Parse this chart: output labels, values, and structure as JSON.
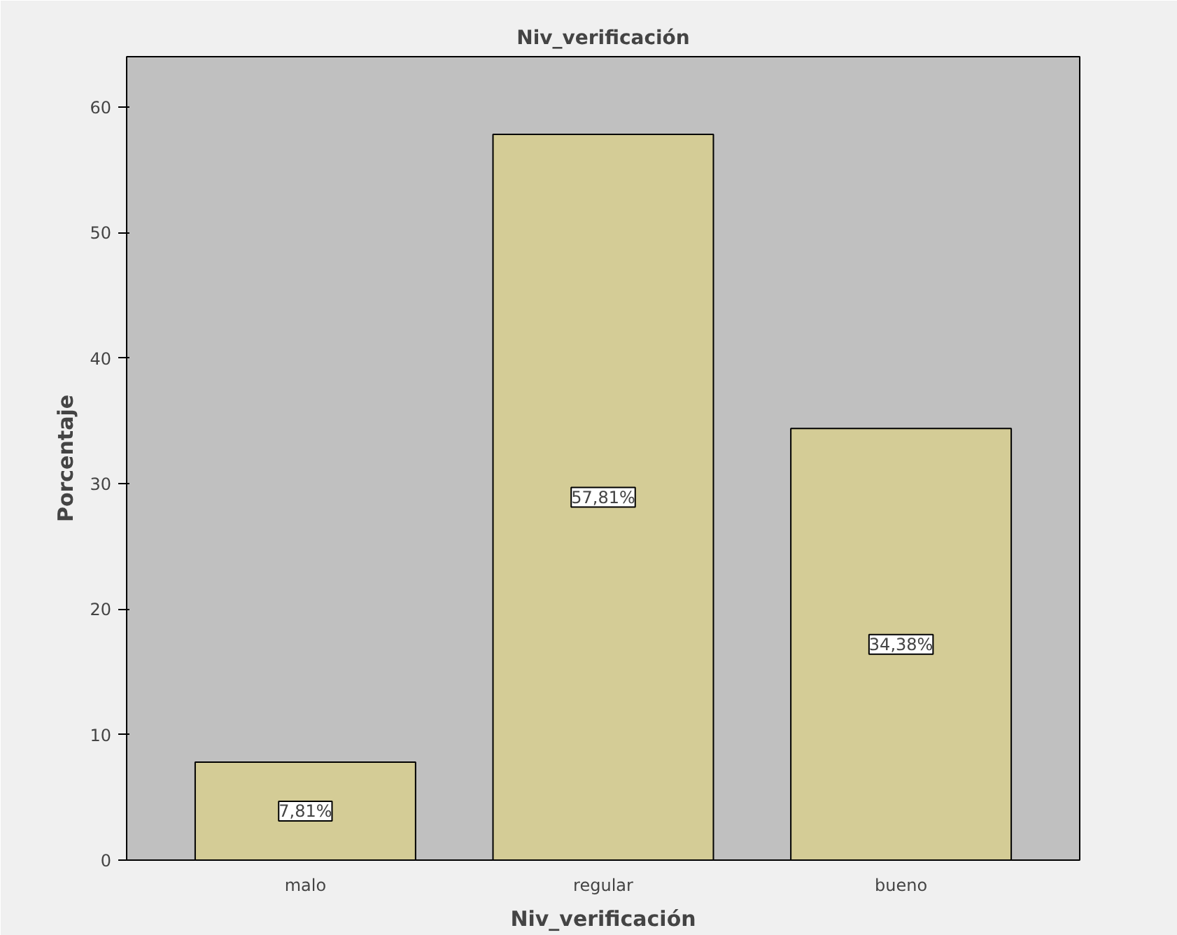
{
  "chart_data": {
    "type": "bar",
    "title": "Niv_verificación",
    "xlabel": "Niv_verificación",
    "ylabel": "Porcentaje",
    "categories": [
      "malo",
      "regular",
      "bueno"
    ],
    "values": [
      7.81,
      57.81,
      34.38
    ],
    "value_labels": [
      "7,81%",
      "57,81%",
      "34,38%"
    ],
    "color": "#d4cc96",
    "ylim": [
      0,
      64
    ],
    "yticks": [
      0,
      10,
      20,
      30,
      40,
      50,
      60
    ]
  }
}
